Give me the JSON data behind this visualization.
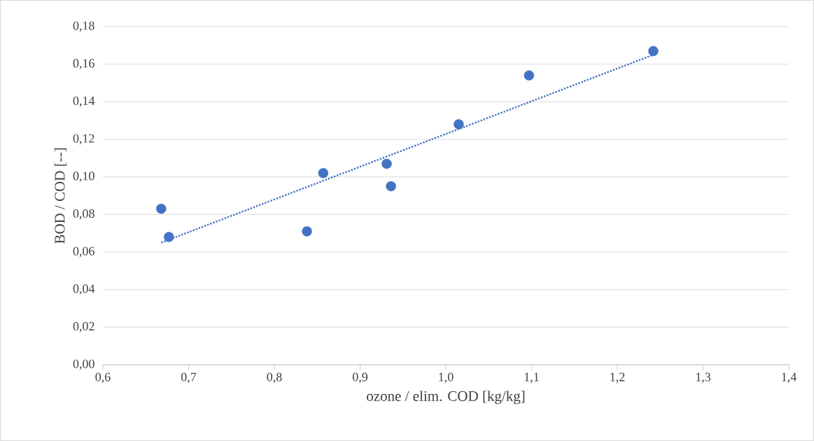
{
  "chart_data": {
    "type": "scatter",
    "xlabel": "ozone / elim. COD [kg/kg]",
    "ylabel": "BOD / COD [--]",
    "xlim": [
      0.6,
      1.4
    ],
    "ylim": [
      0,
      0.18
    ],
    "xticks": [
      {
        "value": 0.6,
        "label": "0,6"
      },
      {
        "value": 0.7,
        "label": "0,7"
      },
      {
        "value": 0.8,
        "label": "0,8"
      },
      {
        "value": 0.9,
        "label": "0,9"
      },
      {
        "value": 1.0,
        "label": "1,0"
      },
      {
        "value": 1.1,
        "label": "1,1"
      },
      {
        "value": 1.2,
        "label": "1,2"
      },
      {
        "value": 1.3,
        "label": "1,3"
      },
      {
        "value": 1.4,
        "label": "1,4"
      }
    ],
    "yticks": [
      {
        "value": 0,
        "label": "0,00"
      },
      {
        "value": 0.02,
        "label": "0,02"
      },
      {
        "value": 0.04,
        "label": "0,04"
      },
      {
        "value": 0.06,
        "label": "0,06"
      },
      {
        "value": 0.08,
        "label": "0,08"
      },
      {
        "value": 0.1,
        "label": "0,10"
      },
      {
        "value": 0.12,
        "label": "0,12"
      },
      {
        "value": 0.14,
        "label": "0,14"
      },
      {
        "value": 0.16,
        "label": "0,16"
      },
      {
        "value": 0.18,
        "label": "0,18"
      }
    ],
    "grid": "y",
    "marker": "circle",
    "series": [
      {
        "color": "#4472c4",
        "x": [
          0.668,
          0.677,
          0.838,
          0.857,
          0.931,
          0.936,
          1.015,
          1.097,
          1.242
        ],
        "values": [
          0.083,
          0.068,
          0.071,
          0.102,
          0.107,
          0.095,
          0.128,
          0.154,
          0.167
        ]
      },
      {
        "type": "line",
        "color": "#4472c4",
        "line_style": "dotted",
        "marker": "none",
        "x": [
          0.668,
          1.242
        ],
        "values": [
          0.065,
          0.165
        ]
      }
    ]
  }
}
